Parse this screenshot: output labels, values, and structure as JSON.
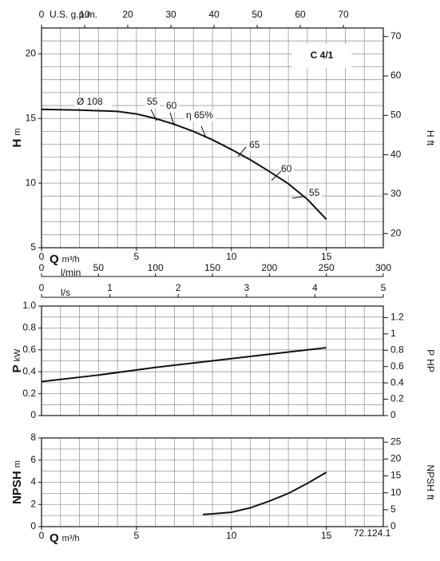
{
  "chart_data": [
    {
      "type": "line",
      "title": "C 4/1",
      "x": [
        0,
        2,
        4,
        5,
        6,
        7,
        8,
        9,
        10,
        11,
        12,
        13,
        14,
        15
      ],
      "series": [
        {
          "color": "#111111",
          "values": [
            15.7,
            15.65,
            15.55,
            15.35,
            15.0,
            14.55,
            14.0,
            13.35,
            12.6,
            11.8,
            10.9,
            9.95,
            8.75,
            7.2
          ]
        }
      ],
      "x_label": "Q",
      "x_unit": "m³/h",
      "y_label": "H",
      "y_unit": "m",
      "y2_label": "H",
      "y2_unit": "ft",
      "xlim": [
        0,
        18
      ],
      "xticks": [
        0,
        5,
        10,
        15
      ],
      "ylim": [
        5,
        22
      ],
      "yticks": [
        5,
        10,
        15,
        20
      ],
      "y2lim": [
        16.404,
        72.178
      ],
      "y2ticks": [
        20,
        30,
        40,
        50,
        60,
        70
      ],
      "xgrid": [
        1,
        2,
        3,
        4,
        5,
        6,
        7,
        8,
        9,
        10,
        11,
        12,
        13,
        14,
        15,
        16,
        17
      ],
      "ygrid": [
        6,
        7,
        8,
        9,
        10,
        11,
        12,
        13,
        14,
        15,
        16,
        17,
        18,
        19,
        20,
        21
      ],
      "top_axis": {
        "label": "U.S. g.p.m.",
        "lim": [
          0,
          79.25
        ],
        "ticks": [
          0,
          10,
          20,
          30,
          40,
          50,
          60,
          70
        ]
      },
      "bottom_axes": [
        {
          "label": "l/min",
          "lim": [
            0,
            300
          ],
          "ticks": [
            0,
            50,
            100,
            150,
            200,
            250,
            300
          ]
        },
        {
          "label": "l/s",
          "lim": [
            0,
            5
          ],
          "ticks": [
            0,
            1,
            2,
            3,
            4,
            5
          ]
        }
      ],
      "annotations": [
        "Ø  108",
        "55",
        "60",
        "η 65%",
        "65",
        "60",
        "55"
      ]
    },
    {
      "type": "line",
      "x": [
        0,
        3,
        6,
        9,
        12,
        15
      ],
      "series": [
        {
          "color": "#111111",
          "values": [
            0.31,
            0.37,
            0.44,
            0.5,
            0.56,
            0.62
          ]
        }
      ],
      "y_label": "P",
      "y_unit": "kW",
      "y2_label": "P",
      "y2_unit": "HP",
      "xlim": [
        0,
        18
      ],
      "ylim": [
        0,
        1
      ],
      "yticks": [
        0,
        0.2,
        0.4,
        0.6,
        0.8,
        {
          "value": 1,
          "label": "1.0"
        }
      ],
      "y2lim": [
        0,
        1.341
      ],
      "y2ticks": [
        0,
        0.2,
        0.4,
        0.6,
        0.8,
        1,
        1.2
      ],
      "xgrid": [
        1,
        2,
        3,
        4,
        5,
        6,
        7,
        8,
        9,
        10,
        11,
        12,
        13,
        14,
        15,
        16,
        17
      ],
      "ygrid": [
        0.1,
        0.2,
        0.3,
        0.4,
        0.5,
        0.6,
        0.7,
        0.8,
        0.9
      ]
    },
    {
      "type": "line",
      "x": [
        8.5,
        9,
        10,
        11,
        12,
        13,
        14,
        15
      ],
      "series": [
        {
          "color": "#111111",
          "values": [
            1.1,
            1.15,
            1.3,
            1.7,
            2.3,
            3.0,
            3.9,
            4.9
          ]
        }
      ],
      "x_label": "Q",
      "x_unit": "m³/h",
      "y_label": "NPSH",
      "y_unit": "m",
      "y2_label": "NPSH",
      "y2_unit": "ft",
      "xlim": [
        0,
        18
      ],
      "xticks": [
        0,
        5,
        10,
        15
      ],
      "ylim": [
        0,
        8
      ],
      "yticks": [
        0,
        2,
        4,
        6,
        8
      ],
      "y2lim": [
        0,
        26.247
      ],
      "y2ticks": [
        0,
        5,
        10,
        15,
        20,
        25
      ],
      "xgrid": [
        1,
        2,
        3,
        4,
        5,
        6,
        7,
        8,
        9,
        10,
        11,
        12,
        13,
        14,
        15,
        16,
        17
      ],
      "ygrid": [
        1,
        2,
        3,
        4,
        5,
        6,
        7
      ],
      "code": "72.124.1"
    }
  ]
}
